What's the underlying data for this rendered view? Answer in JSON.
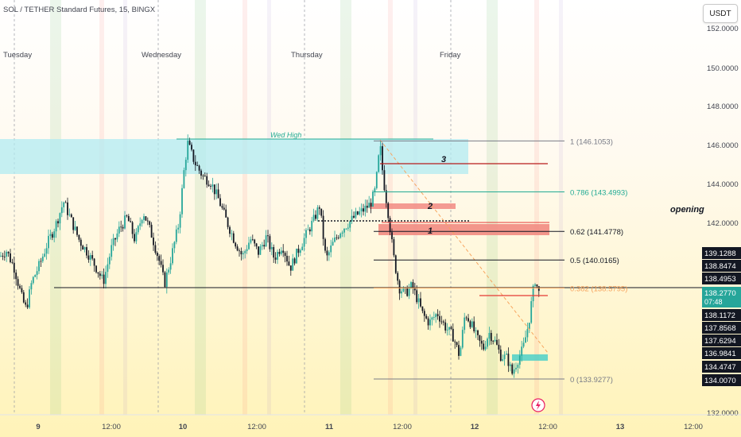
{
  "header": {
    "title": "SOL / TETHER Standard Futures, 15, BINGX"
  },
  "currency_button": {
    "label": "USDT"
  },
  "chart_data": {
    "type": "candlestick",
    "title": "SOL / TETHER Standard Futures, 15, BINGX",
    "x_ticks": [
      "9",
      "12:00",
      "10",
      "12:00",
      "11",
      "12:00",
      "12",
      "12:00",
      "13",
      "12:00"
    ],
    "day_labels": [
      "Tuesday",
      "Wednesday",
      "Thursday",
      "Friday"
    ],
    "y_ticks": [
      "152.0000",
      "150.0000",
      "148.0000",
      "146.0000",
      "144.0000",
      "142.0000",
      "132.0000"
    ],
    "ylim": [
      132,
      152.4
    ],
    "fib_levels": [
      {
        "ratio": "1",
        "price": "146.1053",
        "label": "1 (146.1053)",
        "color": "#787b86"
      },
      {
        "ratio": "0.786",
        "price": "143.4993",
        "label": "0.786 (143.4993)",
        "color": "#22ab94"
      },
      {
        "ratio": "0.62",
        "price": "141.4778",
        "label": "0.62 (141.4778)",
        "color": "#131722"
      },
      {
        "ratio": "0.5",
        "price": "140.0165",
        "label": "0.5 (140.0165)",
        "color": "#131722"
      },
      {
        "ratio": "0.382",
        "price": "138.5795",
        "label": "0.382 (138.5795)",
        "color": "#f7a35c"
      },
      {
        "ratio": "0",
        "price": "133.9277",
        "label": "0 (133.9277)",
        "color": "#787b86"
      }
    ],
    "price_tags": [
      {
        "value": "139.1288",
        "style": "dark"
      },
      {
        "value": "138.8474",
        "style": "dark"
      },
      {
        "value": "138.4953",
        "style": "dark"
      },
      {
        "value": "138.2770",
        "sub": "07:48",
        "style": "teal"
      },
      {
        "value": "138.1172",
        "style": "dark"
      },
      {
        "value": "137.8568",
        "style": "dark"
      },
      {
        "value": "137.6294",
        "style": "dark"
      },
      {
        "value": "136.9841",
        "style": "dark"
      },
      {
        "value": "134.4747",
        "style": "dark"
      },
      {
        "value": "134.0070",
        "style": "dark"
      }
    ],
    "annotations": {
      "wed_high": "Wed High",
      "opening": "opening",
      "marks": [
        "3",
        "2",
        "1"
      ]
    },
    "colors": {
      "up": "#26a69a",
      "down": "#131722",
      "zone": "#b2ebf2",
      "red_zone": "#f28b82"
    }
  }
}
